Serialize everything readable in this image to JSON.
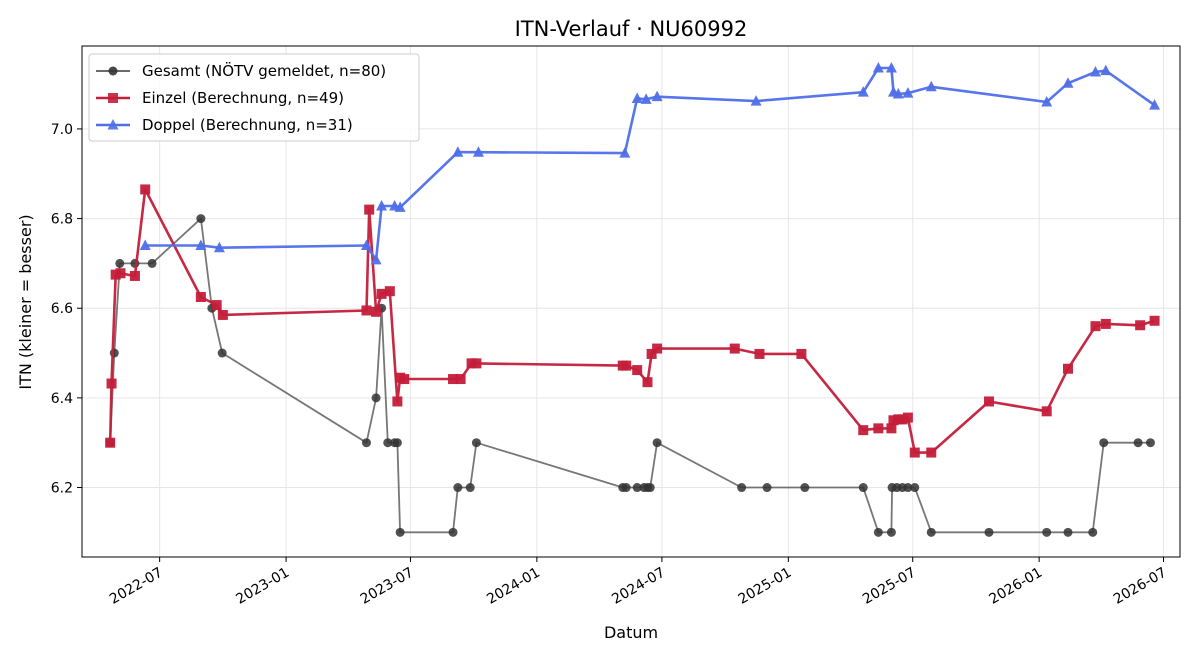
{
  "chart_data": {
    "type": "line",
    "title": "ITN-Verlauf · NU60992",
    "xlabel": "Datum",
    "ylabel": "ITN  (kleiner = besser)",
    "xlim": [
      "2022-03-10",
      "2026-07-25"
    ],
    "ylim": [
      6.045,
      7.185
    ],
    "grid": true,
    "legend_position": "top-left",
    "x_ticks": [
      "2022-07-01",
      "2023-01-01",
      "2023-07-01",
      "2024-01-01",
      "2024-07-01",
      "2025-01-01",
      "2025-07-01",
      "2026-01-01",
      "2026-07-01"
    ],
    "x_tick_labels": [
      "2022-07",
      "2023-01",
      "2023-07",
      "2024-01",
      "2024-07",
      "2025-01",
      "2025-07",
      "2026-01",
      "2026-07"
    ],
    "y_ticks": [
      6.2,
      6.4,
      6.6,
      6.8,
      7.0
    ],
    "y_tick_labels": [
      "6.2",
      "6.4",
      "6.6",
      "6.8",
      "7.0"
    ],
    "series": [
      {
        "name": "Gesamt (NÖTV gemeldet, n=80)",
        "color": "#555555",
        "marker": "circle",
        "points": [
          [
            "2022-04-20",
            6.3
          ],
          [
            "2022-04-26",
            6.5
          ],
          [
            "2022-05-04",
            6.7
          ],
          [
            "2022-05-26",
            6.7
          ],
          [
            "2022-06-20",
            6.7
          ],
          [
            "2022-08-30",
            6.8
          ],
          [
            "2022-09-15",
            6.6
          ],
          [
            "2022-09-30",
            6.5
          ],
          [
            "2023-04-28",
            6.3
          ],
          [
            "2023-05-12",
            6.4
          ],
          [
            "2023-05-20",
            6.6
          ],
          [
            "2023-05-29",
            6.3
          ],
          [
            "2023-06-08",
            6.3
          ],
          [
            "2023-06-12",
            6.3
          ],
          [
            "2023-06-16",
            6.1
          ],
          [
            "2023-09-01",
            6.1
          ],
          [
            "2023-09-08",
            6.2
          ],
          [
            "2023-09-26",
            6.2
          ],
          [
            "2023-10-05",
            6.3
          ],
          [
            "2024-05-05",
            6.2
          ],
          [
            "2024-05-10",
            6.2
          ],
          [
            "2024-05-26",
            6.2
          ],
          [
            "2024-06-05",
            6.2
          ],
          [
            "2024-06-10",
            6.2
          ],
          [
            "2024-06-14",
            6.2
          ],
          [
            "2024-06-24",
            6.3
          ],
          [
            "2024-10-25",
            6.2
          ],
          [
            "2024-12-01",
            6.2
          ],
          [
            "2025-01-25",
            6.2
          ],
          [
            "2025-04-20",
            6.2
          ],
          [
            "2025-05-12",
            6.1
          ],
          [
            "2025-05-31",
            6.1
          ],
          [
            "2025-06-01",
            6.2
          ],
          [
            "2025-06-08",
            6.2
          ],
          [
            "2025-06-16",
            6.2
          ],
          [
            "2025-06-24",
            6.2
          ],
          [
            "2025-07-04",
            6.2
          ],
          [
            "2025-07-28",
            6.1
          ],
          [
            "2025-10-20",
            6.1
          ],
          [
            "2026-01-12",
            6.1
          ],
          [
            "2026-02-12",
            6.1
          ],
          [
            "2026-03-20",
            6.1
          ],
          [
            "2026-04-05",
            6.3
          ],
          [
            "2026-05-25",
            6.3
          ],
          [
            "2026-06-12",
            6.3
          ]
        ]
      },
      {
        "name": "Einzel (Berechnung, n=49)",
        "color": "#c41e3a",
        "marker": "square",
        "points": [
          [
            "2022-04-20",
            6.3
          ],
          [
            "2022-04-22",
            6.432
          ],
          [
            "2022-04-28",
            6.675
          ],
          [
            "2022-05-05",
            6.678
          ],
          [
            "2022-05-26",
            6.672
          ],
          [
            "2022-06-10",
            6.865
          ],
          [
            "2022-08-30",
            6.625
          ],
          [
            "2022-09-22",
            6.607
          ],
          [
            "2022-10-01",
            6.585
          ],
          [
            "2023-04-28",
            6.595
          ],
          [
            "2023-05-02",
            6.82
          ],
          [
            "2023-05-12",
            6.592
          ],
          [
            "2023-05-20",
            6.632
          ],
          [
            "2023-06-01",
            6.638
          ],
          [
            "2023-06-12",
            6.392
          ],
          [
            "2023-06-16",
            6.445
          ],
          [
            "2023-06-22",
            6.442
          ],
          [
            "2023-09-01",
            6.442
          ],
          [
            "2023-09-12",
            6.442
          ],
          [
            "2023-09-28",
            6.477
          ],
          [
            "2023-10-05",
            6.477
          ],
          [
            "2024-05-05",
            6.472
          ],
          [
            "2024-05-10",
            6.472
          ],
          [
            "2024-05-26",
            6.462
          ],
          [
            "2024-06-10",
            6.435
          ],
          [
            "2024-06-16",
            6.498
          ],
          [
            "2024-06-24",
            6.51
          ],
          [
            "2024-10-15",
            6.51
          ],
          [
            "2024-11-20",
            6.498
          ],
          [
            "2025-01-20",
            6.498
          ],
          [
            "2025-04-20",
            6.328
          ],
          [
            "2025-05-12",
            6.332
          ],
          [
            "2025-05-31",
            6.332
          ],
          [
            "2025-06-03",
            6.35
          ],
          [
            "2025-06-10",
            6.352
          ],
          [
            "2025-06-16",
            6.352
          ],
          [
            "2025-06-24",
            6.356
          ],
          [
            "2025-07-04",
            6.278
          ],
          [
            "2025-07-28",
            6.278
          ],
          [
            "2025-10-20",
            6.392
          ],
          [
            "2026-01-12",
            6.37
          ],
          [
            "2026-02-12",
            6.465
          ],
          [
            "2026-03-24",
            6.56
          ],
          [
            "2026-04-08",
            6.565
          ],
          [
            "2026-05-28",
            6.562
          ],
          [
            "2026-06-18",
            6.572
          ]
        ]
      },
      {
        "name": "Doppel (Berechnung, n=31)",
        "color": "#4f6fe8",
        "marker": "triangle",
        "points": [
          [
            "2022-06-10",
            6.74
          ],
          [
            "2022-08-30",
            6.74
          ],
          [
            "2022-09-26",
            6.735
          ],
          [
            "2023-04-28",
            6.74
          ],
          [
            "2023-05-12",
            6.708
          ],
          [
            "2023-05-20",
            6.828
          ],
          [
            "2023-06-08",
            6.828
          ],
          [
            "2023-06-16",
            6.825
          ],
          [
            "2023-09-08",
            6.948
          ],
          [
            "2023-10-08",
            6.948
          ],
          [
            "2024-05-08",
            6.946
          ],
          [
            "2024-05-26",
            7.068
          ],
          [
            "2024-06-08",
            7.066
          ],
          [
            "2024-06-24",
            7.072
          ],
          [
            "2024-11-15",
            7.062
          ],
          [
            "2025-04-20",
            7.082
          ],
          [
            "2025-05-12",
            7.136
          ],
          [
            "2025-05-31",
            7.136
          ],
          [
            "2025-06-03",
            7.082
          ],
          [
            "2025-06-10",
            7.078
          ],
          [
            "2025-06-24",
            7.08
          ],
          [
            "2025-07-28",
            7.094
          ],
          [
            "2026-01-12",
            7.06
          ],
          [
            "2026-02-12",
            7.102
          ],
          [
            "2026-03-24",
            7.127
          ],
          [
            "2026-04-08",
            7.13
          ],
          [
            "2026-06-18",
            7.053
          ]
        ]
      }
    ]
  }
}
